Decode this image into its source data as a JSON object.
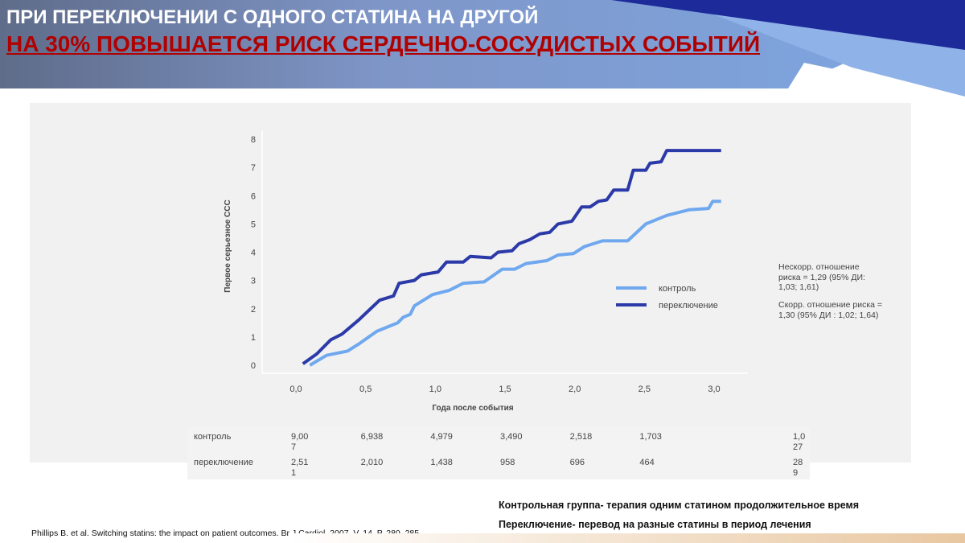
{
  "slide": {
    "title_line1": "ПРИ ПЕРЕКЛЮЧЕНИИ С ОДНОГО СТАТИНА НА ДРУГОЙ",
    "title_line2": " НА 30%  ПОВЫШАЕТСЯ РИСК СЕРДЕЧНО-СОСУДИСТЫХ СОБЫТИЙ",
    "colors": {
      "header_dark": "#1c2a9a",
      "header_light": "#6f8fce",
      "title_red": "#b00000",
      "footer_accent": "#e8c7a0"
    }
  },
  "chart_data": {
    "type": "line",
    "xlabel": "Года после события",
    "ylabel": "Первое серьезное ССС",
    "x_ticks": [
      "0,0",
      "0,5",
      "1,0",
      "1,5",
      "2,0",
      "2,5",
      "3,0"
    ],
    "y_ticks": [
      "0",
      "1",
      "2",
      "3",
      "4",
      "5",
      "6",
      "7",
      "8"
    ],
    "xlim": [
      0,
      3
    ],
    "ylim": [
      0,
      8
    ],
    "series": [
      {
        "name": "контроль",
        "color": "#6fa8ef",
        "points": [
          [
            0.1,
            0.0
          ],
          [
            0.22,
            0.35
          ],
          [
            0.37,
            0.5
          ],
          [
            0.45,
            0.75
          ],
          [
            0.58,
            1.2
          ],
          [
            0.73,
            1.5
          ],
          [
            0.77,
            1.7
          ],
          [
            0.82,
            1.8
          ],
          [
            0.85,
            2.1
          ],
          [
            0.98,
            2.5
          ],
          [
            1.1,
            2.65
          ],
          [
            1.2,
            2.9
          ],
          [
            1.35,
            2.95
          ],
          [
            1.48,
            3.4
          ],
          [
            1.57,
            3.4
          ],
          [
            1.65,
            3.6
          ],
          [
            1.8,
            3.7
          ],
          [
            1.88,
            3.9
          ],
          [
            1.99,
            3.95
          ],
          [
            2.07,
            4.2
          ],
          [
            2.2,
            4.4
          ],
          [
            2.38,
            4.4
          ],
          [
            2.51,
            5.0
          ],
          [
            2.66,
            5.3
          ],
          [
            2.82,
            5.5
          ],
          [
            2.96,
            5.55
          ],
          [
            2.99,
            5.8
          ],
          [
            3.05,
            5.8
          ]
        ]
      },
      {
        "name": "переключение",
        "color": "#2b3aa8",
        "points": [
          [
            0.05,
            0.05
          ],
          [
            0.15,
            0.4
          ],
          [
            0.25,
            0.9
          ],
          [
            0.33,
            1.1
          ],
          [
            0.45,
            1.6
          ],
          [
            0.6,
            2.3
          ],
          [
            0.7,
            2.45
          ],
          [
            0.74,
            2.9
          ],
          [
            0.85,
            3.0
          ],
          [
            0.9,
            3.2
          ],
          [
            1.02,
            3.3
          ],
          [
            1.08,
            3.65
          ],
          [
            1.2,
            3.65
          ],
          [
            1.25,
            3.85
          ],
          [
            1.4,
            3.8
          ],
          [
            1.45,
            4.0
          ],
          [
            1.55,
            4.05
          ],
          [
            1.6,
            4.3
          ],
          [
            1.68,
            4.45
          ],
          [
            1.75,
            4.65
          ],
          [
            1.82,
            4.7
          ],
          [
            1.88,
            5.0
          ],
          [
            1.98,
            5.1
          ],
          [
            2.05,
            5.6
          ],
          [
            2.11,
            5.6
          ],
          [
            2.17,
            5.8
          ],
          [
            2.23,
            5.85
          ],
          [
            2.28,
            6.2
          ],
          [
            2.38,
            6.2
          ],
          [
            2.42,
            6.9
          ],
          [
            2.51,
            6.9
          ],
          [
            2.54,
            7.15
          ],
          [
            2.62,
            7.2
          ],
          [
            2.66,
            7.6
          ],
          [
            3.05,
            7.6
          ]
        ]
      }
    ],
    "risk_table": {
      "columns_x": [
        0,
        0.5,
        1.0,
        1.5,
        2.0,
        2.5,
        3.0
      ],
      "rows": [
        {
          "label": "контроль",
          "values": [
            "9,00\n7",
            "6,938",
            "4,979",
            "3,490",
            "2,518",
            "1,703",
            "1,0\n27"
          ]
        },
        {
          "label": "переключение",
          "values": [
            "2,51\n1",
            "2,010",
            "1,438",
            "958",
            "696",
            "464",
            "28\n9"
          ]
        }
      ]
    }
  },
  "stats": {
    "unadjusted": "Нескорр. отношение риска = 1,29 (95% ДИ: 1,03; 1,61)",
    "adjusted": "Скорр. отношение риска = 1,30 (95% ДИ : 1,02; 1,64)"
  },
  "definitions": {
    "control": "Контрольная группа- терапия одним статином продолжительное время",
    "switching": "Переключение- перевод на  разные статины в период лечения"
  },
  "reference": "Phillips B. et al. Switching statins: the impact on patient outcomes. Br J Cardiol. 2007. V. 14. P. 280–285."
}
